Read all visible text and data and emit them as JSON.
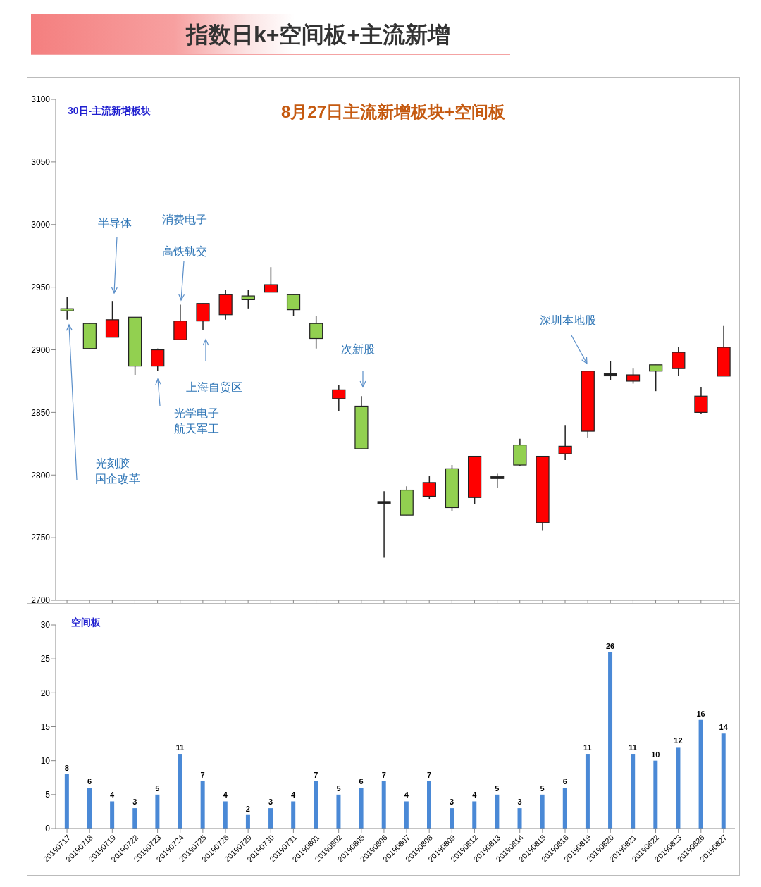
{
  "chart_data": [
    {
      "type": "candlestick",
      "title": "指数日k+空间板+主流新增",
      "subtitle": "8月27日主流新增板块+空间板",
      "categories": [
        "20190717",
        "20190718",
        "20190719",
        "20190722",
        "20190723",
        "20190724",
        "20190725",
        "20190726",
        "20190729",
        "20190730",
        "20190731",
        "20190801",
        "20190802",
        "20190805",
        "20190806",
        "20190807",
        "20190808",
        "20190809",
        "20190812",
        "20190813",
        "20190814",
        "20190815",
        "20190816",
        "20190819",
        "20190820",
        "20190821",
        "20190822",
        "20190823",
        "20190826",
        "20190827"
      ],
      "ohlc": [
        [
          2932,
          2942,
          2924,
          2931
        ],
        [
          2921,
          2921,
          2901,
          2901
        ],
        [
          2910,
          2939,
          2910,
          2924
        ],
        [
          2926,
          2926,
          2880,
          2887
        ],
        [
          2887,
          2901,
          2883,
          2900
        ],
        [
          2908,
          2936,
          2908,
          2923
        ],
        [
          2923,
          2937,
          2916,
          2937
        ],
        [
          2928,
          2948,
          2924,
          2944
        ],
        [
          2943,
          2948,
          2933,
          2940
        ],
        [
          2946,
          2966,
          2946,
          2952
        ],
        [
          2944,
          2944,
          2927,
          2932
        ],
        [
          2921,
          2927,
          2901,
          2909
        ],
        [
          2861,
          2872,
          2851,
          2868
        ],
        [
          2855,
          2863,
          2821,
          2821
        ],
        [
          2778,
          2787,
          2734,
          2778
        ],
        [
          2788,
          2791,
          2768,
          2768
        ],
        [
          2783,
          2799,
          2781,
          2794
        ],
        [
          2805,
          2808,
          2771,
          2774
        ],
        [
          2782,
          2815,
          2777,
          2815
        ],
        [
          2798,
          2801,
          2790,
          2798
        ],
        [
          2824,
          2829,
          2807,
          2808
        ],
        [
          2762,
          2815,
          2756,
          2815
        ],
        [
          2817,
          2840,
          2812,
          2823
        ],
        [
          2835,
          2883,
          2830,
          2883
        ],
        [
          2880,
          2891,
          2876,
          2880
        ],
        [
          2875,
          2885,
          2873,
          2880
        ],
        [
          2888,
          2888,
          2867,
          2883
        ],
        [
          2885,
          2902,
          2879,
          2898
        ],
        [
          2850,
          2870,
          2849,
          2863
        ],
        [
          2879,
          2919,
          2879,
          2902
        ]
      ],
      "colors": [
        "#92d050",
        "#92d050",
        "#ff0000",
        "#92d050",
        "#ff0000",
        "#ff0000",
        "#ff0000",
        "#ff0000",
        "#92d050",
        "#ff0000",
        "#92d050",
        "#92d050",
        "#ff0000",
        "#92d050",
        "#222222",
        "#92d050",
        "#ff0000",
        "#92d050",
        "#ff0000",
        "#222222",
        "#92d050",
        "#ff0000",
        "#ff0000",
        "#ff0000",
        "#222222",
        "#ff0000",
        "#92d050",
        "#ff0000",
        "#ff0000",
        "#ff0000"
      ],
      "ylim": [
        2700,
        3100
      ],
      "yticks": [
        2700,
        2750,
        2800,
        2850,
        2900,
        2950,
        3000,
        3050,
        3100
      ],
      "tick_labels": "y",
      "annotations": [
        "30日-主流新增板块",
        "光刻胶",
        "国企改革",
        "半导体",
        "消费电子",
        "高铁轨交",
        "光学电子",
        "航天军工",
        "上海自贸区",
        "次新股",
        "深圳本地股"
      ]
    },
    {
      "type": "bar",
      "title": "空间板",
      "categories": [
        "20190717",
        "20190718",
        "20190719",
        "20190722",
        "20190723",
        "20190724",
        "20190725",
        "20190726",
        "20190729",
        "20190730",
        "20190731",
        "20190801",
        "20190802",
        "20190805",
        "20190806",
        "20190807",
        "20190808",
        "20190809",
        "20190812",
        "20190813",
        "20190814",
        "20190815",
        "20190816",
        "20190819",
        "20190820",
        "20190821",
        "20190822",
        "20190823",
        "20190826",
        "20190827"
      ],
      "values": [
        8,
        6,
        4,
        3,
        5,
        11,
        7,
        4,
        2,
        3,
        4,
        7,
        5,
        6,
        7,
        4,
        7,
        3,
        4,
        5,
        3,
        5,
        6,
        11,
        26,
        11,
        10,
        12,
        16,
        14
      ],
      "color": "#4a89d6",
      "ylim": [
        0,
        30
      ],
      "yticks": [
        0,
        5,
        10,
        15,
        20,
        25,
        30
      ],
      "data_labels": true
    }
  ]
}
